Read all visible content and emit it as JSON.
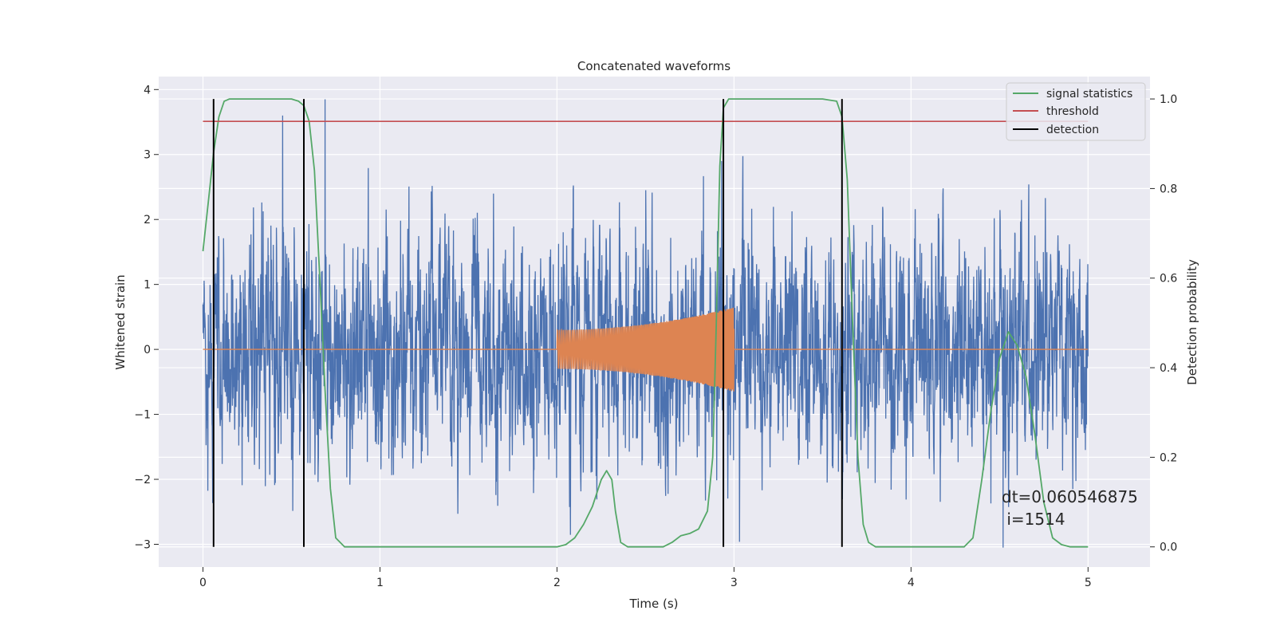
{
  "chart_data": {
    "type": "line",
    "title": "Concatenated waveforms",
    "xlabel": "Time (s)",
    "ylabel": "Whitened strain",
    "y2label": "Detection probability",
    "xlim": [
      -0.25,
      5.35
    ],
    "ylim": [
      -3.35,
      4.2
    ],
    "y2lim": [
      -0.045,
      1.05
    ],
    "xticks": [
      0,
      1,
      2,
      3,
      4,
      5
    ],
    "yticks": [
      -3,
      -2,
      -1,
      0,
      1,
      2,
      3,
      4
    ],
    "y2ticks": [
      0.0,
      0.2,
      0.4,
      0.6,
      0.8,
      1.0
    ],
    "xtick_labels": [
      "0",
      "1",
      "2",
      "3",
      "4",
      "5"
    ],
    "ytick_labels": [
      "−3",
      "−2",
      "−1",
      "0",
      "1",
      "2",
      "3",
      "4"
    ],
    "y2tick_labels": [
      "0.0",
      "0.2",
      "0.4",
      "0.6",
      "0.8",
      "1.0"
    ],
    "grid": true,
    "legend_position": "top-right",
    "colors": {
      "strain": "#4c72b0",
      "injection": "#dd8452",
      "signal_statistics": "#55a868",
      "threshold": "#c44e52",
      "detection": "#000000",
      "plot_background": "#eaeaf2",
      "grid": "#ffffff"
    },
    "series": [
      {
        "name": "",
        "kind": "strain_noise",
        "axis": "left",
        "x_range": [
          0,
          5
        ],
        "std": 0.85,
        "peaks": [
          {
            "x": 0.45,
            "y": 3.6
          },
          {
            "x": 0.69,
            "y": 3.85
          },
          {
            "x": 2.93,
            "y": 2.9
          },
          {
            "x": 4.52,
            "y": -3.05
          }
        ]
      },
      {
        "name": "",
        "kind": "injected_chirp",
        "axis": "left",
        "x_range": [
          2.0,
          3.0
        ],
        "amplitude_start": 0.3,
        "amplitude_end": 0.65
      },
      {
        "name": "signal statistics",
        "axis": "right",
        "x": [
          0.0,
          0.03,
          0.06,
          0.09,
          0.12,
          0.15,
          0.2,
          0.3,
          0.4,
          0.5,
          0.54,
          0.57,
          0.6,
          0.63,
          0.66,
          0.69,
          0.72,
          0.75,
          0.8,
          1.0,
          1.5,
          2.0,
          2.05,
          2.1,
          2.15,
          2.2,
          2.25,
          2.28,
          2.31,
          2.33,
          2.36,
          2.4,
          2.5,
          2.6,
          2.65,
          2.7,
          2.75,
          2.8,
          2.85,
          2.88,
          2.9,
          2.92,
          2.94,
          2.97,
          3.0,
          3.2,
          3.5,
          3.58,
          3.61,
          3.64,
          3.67,
          3.7,
          3.73,
          3.76,
          3.8,
          3.85,
          4.0,
          4.3,
          4.35,
          4.4,
          4.45,
          4.5,
          4.55,
          4.6,
          4.65,
          4.7,
          4.75,
          4.8,
          4.85,
          4.9,
          5.0
        ],
        "values": [
          0.66,
          0.77,
          0.88,
          0.96,
          0.995,
          1.0,
          1.0,
          1.0,
          1.0,
          1.0,
          0.995,
          0.985,
          0.95,
          0.84,
          0.6,
          0.35,
          0.13,
          0.02,
          0.0,
          0.0,
          0.0,
          0.0,
          0.005,
          0.02,
          0.05,
          0.09,
          0.15,
          0.17,
          0.15,
          0.08,
          0.01,
          0.0,
          0.0,
          0.0,
          0.01,
          0.025,
          0.03,
          0.04,
          0.08,
          0.2,
          0.5,
          0.85,
          0.98,
          1.0,
          1.0,
          1.0,
          1.0,
          0.995,
          0.96,
          0.82,
          0.5,
          0.2,
          0.05,
          0.01,
          0.0,
          0.0,
          0.0,
          0.0,
          0.02,
          0.15,
          0.3,
          0.42,
          0.48,
          0.45,
          0.38,
          0.25,
          0.1,
          0.02,
          0.005,
          0.0,
          0.0
        ]
      },
      {
        "name": "threshold",
        "axis": "right",
        "x": [
          0,
          5
        ],
        "values": [
          0.95,
          0.95
        ]
      },
      {
        "name": "detection",
        "axis": "right",
        "kind": "vertical_lines",
        "x": [
          0.06,
          0.57,
          2.94,
          3.61
        ],
        "y_range": [
          0.0,
          1.0
        ]
      }
    ],
    "annotation": {
      "lines": [
        "dt=0.060546875",
        " i=1514"
      ],
      "x": 4.55,
      "y": 0.11,
      "axis": "right"
    }
  }
}
